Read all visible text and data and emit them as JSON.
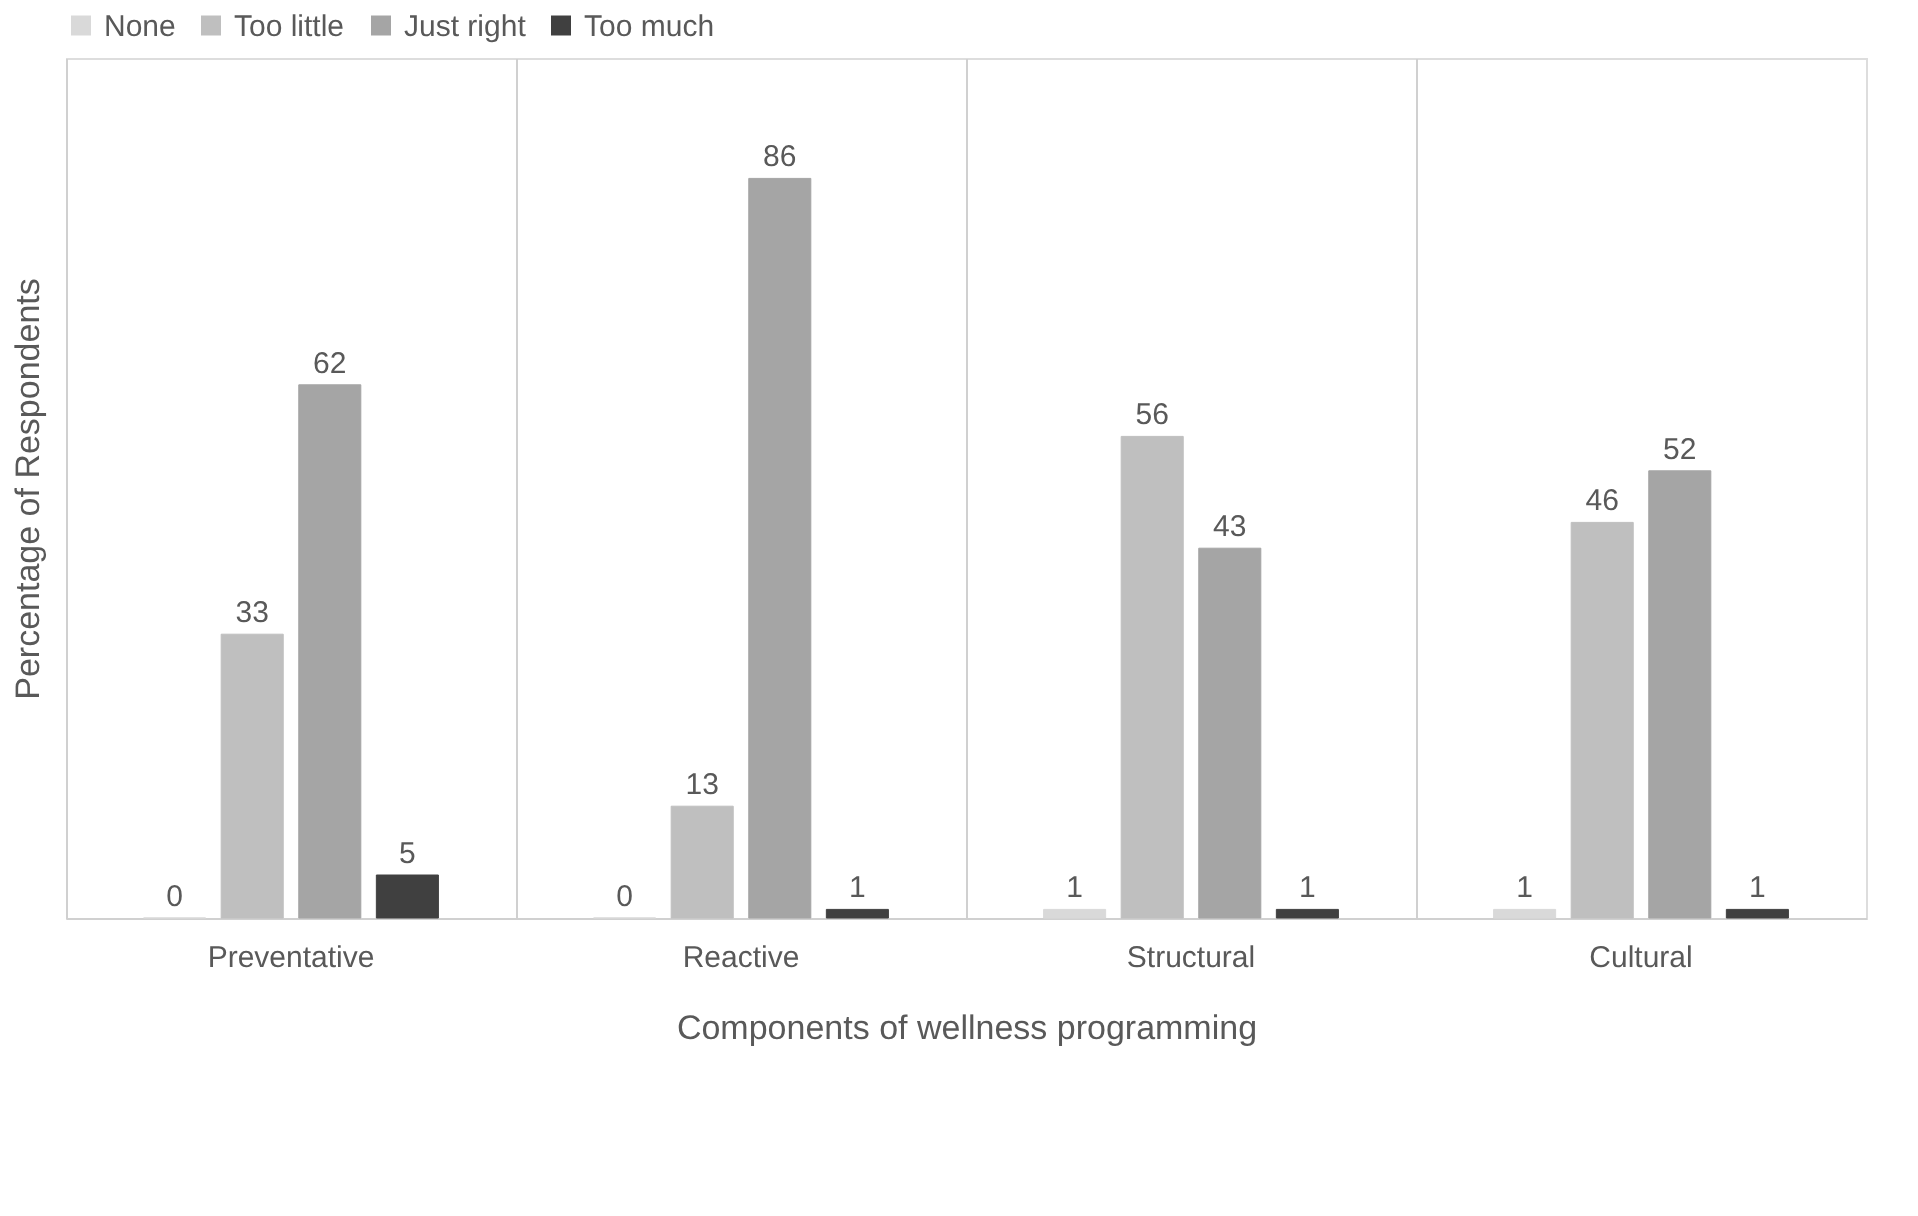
{
  "chart_data": {
    "type": "bar",
    "xlabel": "Components of wellness programming",
    "ylabel": "Percentage of Respondents",
    "categories": [
      "Preventative",
      "Reactive",
      "Structural",
      "Cultural"
    ],
    "series": [
      {
        "name": "None",
        "color": "#d9d9d9",
        "values": [
          0,
          0,
          1,
          1
        ]
      },
      {
        "name": "Too little",
        "color": "#bfbfbf",
        "values": [
          33,
          13,
          56,
          46
        ]
      },
      {
        "name": "Just right",
        "color": "#a5a5a5",
        "values": [
          62,
          86,
          43,
          52
        ]
      },
      {
        "name": "Too much",
        "color": "#404040",
        "values": [
          5,
          1,
          1,
          1
        ]
      }
    ],
    "ylim": [
      0,
      100
    ],
    "data_labels": true,
    "grid": "x",
    "legend": "top"
  }
}
